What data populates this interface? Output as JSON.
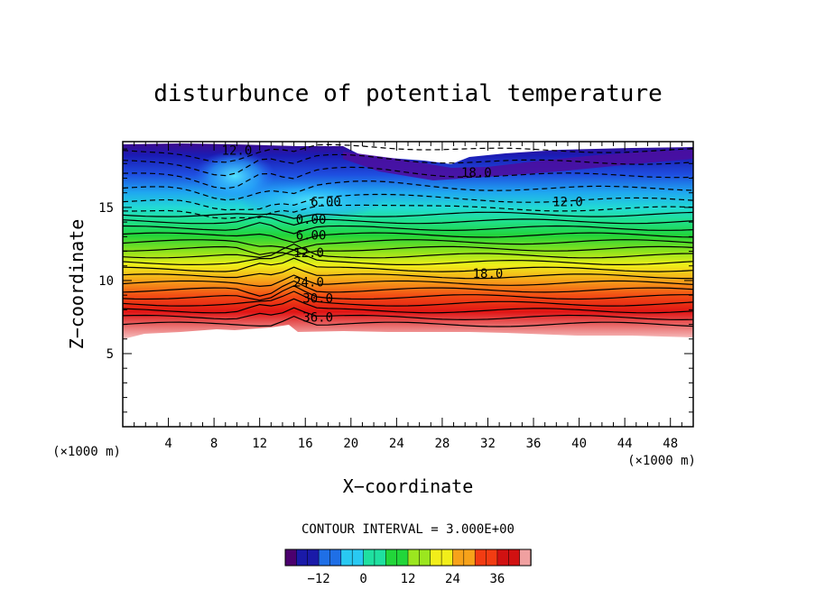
{
  "chart_data": {
    "type": "contour",
    "title": "disturbunce of potential temperature",
    "xlabel": "X−coordinate",
    "ylabel": "Z−coordinate",
    "x_unit": "(×1000 m)",
    "y_unit": "(×1000 m)",
    "xlim": [
      0,
      50
    ],
    "ylim": [
      0,
      19.5
    ],
    "x_ticks": [
      4,
      8,
      12,
      16,
      20,
      24,
      28,
      32,
      36,
      40,
      44,
      48
    ],
    "y_ticks": [
      5,
      10,
      15
    ],
    "contour_interval_label": "CONTOUR INTERVAL = 3.000E+00",
    "colorbar": {
      "min": -21,
      "max": 45,
      "ticks": [
        -12,
        0,
        12,
        24,
        36
      ],
      "colors": [
        "#4b006e",
        "#1a1aa8",
        "#1f6fe6",
        "#29c9f2",
        "#1fe0a0",
        "#22d63a",
        "#9be61f",
        "#f2ee1a",
        "#f7a21a",
        "#f23c12",
        "#d11111",
        "#f0a0a0"
      ]
    },
    "contour_labels": [
      {
        "text": "12.0",
        "x": 10,
        "z": 18.9
      },
      {
        "text": "18.0",
        "x": 31,
        "z": 17.4
      },
      {
        "text": "12.0",
        "x": 39,
        "z": 15.4
      },
      {
        "text": "6.00",
        "x": 17.8,
        "z": 15.4
      },
      {
        "text": "0.00",
        "x": 16.5,
        "z": 14.2
      },
      {
        "text": "6.00",
        "x": 16.5,
        "z": 13.1
      },
      {
        "text": "12.0",
        "x": 16.3,
        "z": 11.9
      },
      {
        "text": "18.0",
        "x": 32,
        "z": 10.5
      },
      {
        "text": "24.0",
        "x": 16.3,
        "z": 9.9
      },
      {
        "text": "30.0",
        "x": 17.1,
        "z": 8.8
      },
      {
        "text": "36.0",
        "x": 17.1,
        "z": 7.5
      }
    ]
  }
}
